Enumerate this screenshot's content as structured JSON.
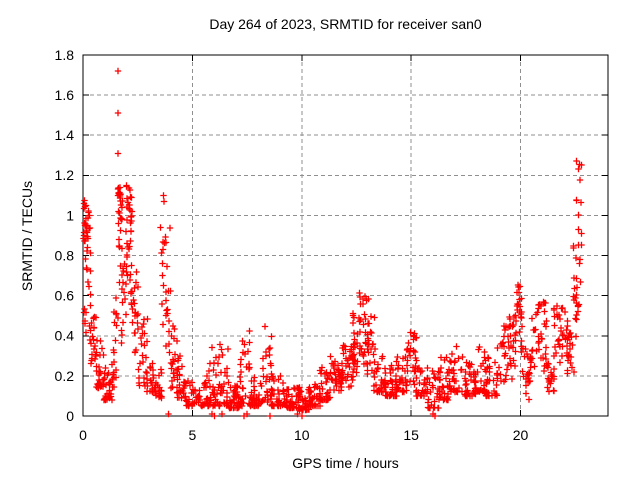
{
  "chart_data": {
    "type": "scatter",
    "title": "Day 264 of 2023, SRMTID for receiver san0",
    "xlabel": "GPS time / hours",
    "ylabel": "SRMTID / TECUs",
    "xlim": [
      0,
      24
    ],
    "ylim": [
      0,
      1.8
    ],
    "xticks": [
      0,
      5,
      10,
      15,
      20
    ],
    "xtick_labels": [
      "0",
      "5",
      "10",
      "15",
      "20"
    ],
    "yticks": [
      0,
      0.2,
      0.4,
      0.6,
      0.8,
      1.0,
      1.2,
      1.4,
      1.6,
      1.8
    ],
    "ytick_labels": [
      "0",
      "0.2",
      "0.4",
      "0.6",
      "0.8",
      "1",
      "1.2",
      "1.4",
      "1.6",
      "1.8"
    ],
    "grid": true,
    "grid_style": "dashed",
    "legend": false,
    "marker": "plus",
    "marker_color": "#ff0000",
    "grid_color": "#8f8f8f",
    "axis_color": "#000000",
    "background_color": "#ffffff",
    "outlier_points": [
      [
        1.6,
        1.72
      ],
      [
        1.6,
        1.51
      ],
      [
        1.6,
        1.31
      ]
    ],
    "near_zero_points": [
      [
        3.9,
        0.01
      ],
      [
        5.9,
        0.01
      ],
      [
        6.0,
        0.0
      ],
      [
        6.35,
        0.01
      ],
      [
        7.35,
        0.0
      ],
      [
        7.5,
        0.01
      ],
      [
        8.55,
        0.0
      ],
      [
        9.8,
        0.01
      ],
      [
        10.0,
        0.0
      ],
      [
        16.0,
        0.01
      ],
      [
        16.1,
        0.0
      ]
    ],
    "segments_format": "[x_start_hr, x_end_hr, y_min_TECU, y_max_TECU, n_points, distribution 0=bottom-heavy 1=uniform 2=top-heavy]",
    "segments": [
      [
        0.03,
        0.15,
        0.3,
        1.12,
        20,
        2
      ],
      [
        0.12,
        0.35,
        0.3,
        1.05,
        24,
        2
      ],
      [
        0.3,
        0.6,
        0.25,
        0.52,
        22,
        1
      ],
      [
        0.55,
        1.0,
        0.14,
        0.38,
        30,
        0
      ],
      [
        0.95,
        1.45,
        0.08,
        0.26,
        32,
        0
      ],
      [
        1.4,
        1.6,
        0.15,
        0.6,
        14,
        1
      ],
      [
        1.55,
        1.8,
        0.45,
        1.15,
        30,
        2
      ],
      [
        1.75,
        2.0,
        0.35,
        0.8,
        16,
        1
      ],
      [
        1.95,
        2.25,
        0.55,
        1.15,
        36,
        2
      ],
      [
        2.2,
        2.55,
        0.3,
        0.75,
        24,
        1
      ],
      [
        2.5,
        2.95,
        0.15,
        0.5,
        26,
        0
      ],
      [
        2.9,
        3.35,
        0.12,
        0.3,
        24,
        0
      ],
      [
        3.3,
        3.6,
        0.09,
        0.25,
        18,
        0
      ],
      [
        3.55,
        3.8,
        0.3,
        1.2,
        16,
        1
      ],
      [
        3.78,
        4.0,
        0.25,
        1.05,
        13,
        1
      ],
      [
        3.95,
        4.35,
        0.14,
        0.45,
        22,
        0
      ],
      [
        4.3,
        4.65,
        0.09,
        0.3,
        20,
        0
      ],
      [
        4.6,
        5.65,
        0.05,
        0.18,
        55,
        0
      ],
      [
        5.6,
        6.15,
        0.05,
        0.35,
        32,
        0
      ],
      [
        6.1,
        6.65,
        0.05,
        0.36,
        32,
        0
      ],
      [
        6.6,
        7.15,
        0.04,
        0.15,
        36,
        0
      ],
      [
        7.1,
        7.65,
        0.05,
        0.45,
        32,
        0
      ],
      [
        7.6,
        8.1,
        0.05,
        0.2,
        34,
        0
      ],
      [
        8.1,
        8.65,
        0.07,
        0.45,
        30,
        0
      ],
      [
        8.6,
        9.35,
        0.05,
        0.2,
        42,
        0
      ],
      [
        9.3,
        9.9,
        0.04,
        0.15,
        40,
        0
      ],
      [
        9.85,
        10.35,
        0.03,
        0.13,
        32,
        0
      ],
      [
        10.3,
        10.85,
        0.05,
        0.16,
        32,
        0
      ],
      [
        10.8,
        11.35,
        0.08,
        0.3,
        32,
        0
      ],
      [
        11.3,
        11.85,
        0.12,
        0.28,
        32,
        1
      ],
      [
        11.8,
        12.35,
        0.14,
        0.36,
        32,
        1
      ],
      [
        12.3,
        12.65,
        0.2,
        0.52,
        26,
        1
      ],
      [
        12.6,
        13.05,
        0.25,
        0.62,
        30,
        1
      ],
      [
        13.0,
        13.35,
        0.18,
        0.5,
        20,
        1
      ],
      [
        13.3,
        13.85,
        0.12,
        0.3,
        32,
        0
      ],
      [
        13.8,
        14.35,
        0.1,
        0.26,
        32,
        0
      ],
      [
        14.3,
        14.85,
        0.12,
        0.3,
        32,
        0
      ],
      [
        14.8,
        15.25,
        0.14,
        0.42,
        26,
        1
      ],
      [
        15.2,
        15.75,
        0.1,
        0.3,
        28,
        0
      ],
      [
        15.7,
        16.25,
        0.04,
        0.25,
        26,
        0
      ],
      [
        16.2,
        16.75,
        0.08,
        0.3,
        32,
        0
      ],
      [
        16.7,
        17.35,
        0.12,
        0.35,
        34,
        0
      ],
      [
        17.3,
        17.95,
        0.1,
        0.3,
        34,
        0
      ],
      [
        17.9,
        18.45,
        0.12,
        0.35,
        32,
        0
      ],
      [
        18.4,
        18.95,
        0.1,
        0.3,
        28,
        0
      ],
      [
        18.9,
        19.45,
        0.14,
        0.45,
        26,
        1
      ],
      [
        19.4,
        19.78,
        0.18,
        0.5,
        22,
        1
      ],
      [
        19.75,
        20.1,
        0.3,
        0.66,
        26,
        2
      ],
      [
        20.05,
        20.55,
        0.08,
        0.35,
        24,
        1
      ],
      [
        20.5,
        21.2,
        0.22,
        0.58,
        36,
        1
      ],
      [
        21.15,
        21.55,
        0.1,
        0.3,
        20,
        1
      ],
      [
        21.5,
        22.15,
        0.25,
        0.56,
        34,
        1
      ],
      [
        22.1,
        22.45,
        0.2,
        0.45,
        20,
        1
      ],
      [
        22.4,
        22.6,
        0.35,
        0.9,
        14,
        1
      ],
      [
        22.55,
        22.8,
        0.5,
        1.3,
        22,
        1
      ]
    ]
  }
}
